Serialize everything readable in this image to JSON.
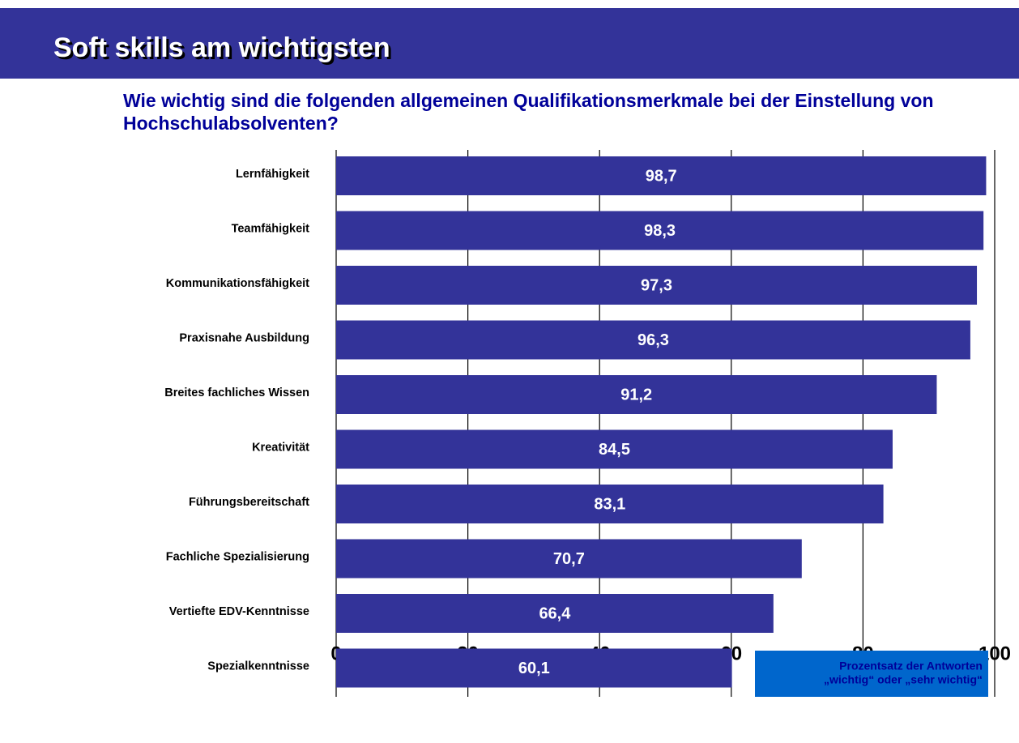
{
  "chart_data": {
    "type": "bar",
    "orientation": "horizontal",
    "title": "Soft skills am wichtigsten",
    "subtitle": "Wie wichtig sind die folgenden allgemeinen Qualifikationsmerkmale bei der Einstellung von Hochschulabsolventen?",
    "categories": [
      "Lernfähigkeit",
      "Teamfähigkeit",
      "Kommunikationsfähigkeit",
      "Praxisnahe Ausbildung",
      "Breites fachliches Wissen",
      "Kreativität",
      "Führungsbereitschaft",
      "Fachliche Spezialisierung",
      "Vertiefte EDV-Kenntnisse",
      "Spezialkenntnisse"
    ],
    "values": [
      98.7,
      98.3,
      97.3,
      96.3,
      91.2,
      84.5,
      83.1,
      70.7,
      66.4,
      60.1
    ],
    "value_labels": [
      "98,7",
      "98,3",
      "97,3",
      "96,3",
      "91,2",
      "84,5",
      "83,1",
      "70,7",
      "66,4",
      "60,1"
    ],
    "color": "#333399",
    "xlim": [
      0,
      100
    ],
    "xticks": [
      0,
      20,
      40,
      60,
      80,
      100
    ],
    "grid": true,
    "annotation": [
      "Prozentsatz der Antworten",
      "„wichtig“ oder „sehr wichtig“"
    ]
  }
}
